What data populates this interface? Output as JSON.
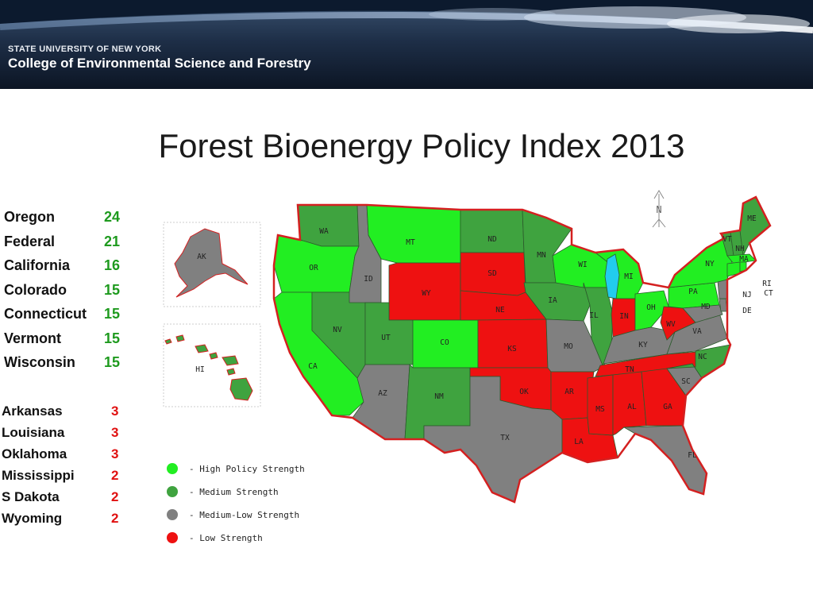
{
  "header": {
    "institution": "STATE UNIVERSITY OF NEW YORK",
    "college": "College of Environmental Science and Forestry"
  },
  "title": "Forest Bioenergy Policy Index 2013",
  "top_states": [
    {
      "name": "Oregon",
      "score": "24"
    },
    {
      "name": "Federal",
      "score": "21"
    },
    {
      "name": "California",
      "score": "16"
    },
    {
      "name": "Colorado",
      "score": "15"
    },
    {
      "name": "Connecticut",
      "score": "15"
    },
    {
      "name": "Vermont",
      "score": "15"
    },
    {
      "name": "Wisconsin",
      "score": "15"
    }
  ],
  "bottom_states": [
    {
      "name": "Arkansas",
      "score": "3"
    },
    {
      "name": "Louisiana",
      "score": "3"
    },
    {
      "name": "Oklahoma",
      "score": "3"
    },
    {
      "name": "Mississippi",
      "score": "2"
    },
    {
      "name": "S Dakota",
      "score": "2"
    },
    {
      "name": "Wyoming",
      "score": "2"
    }
  ],
  "colors": {
    "high": "#22ee22",
    "medium": "#3fa33f",
    "medium_low": "#808080",
    "low": "#ee1111",
    "border": "#d42020"
  },
  "map": {
    "compass_label": "N",
    "state_labels": {
      "WA": "WA",
      "OR": "OR",
      "CA": "CA",
      "ID": "ID",
      "NV": "NV",
      "MT": "MT",
      "WY": "WY",
      "UT": "UT",
      "AZ": "AZ",
      "CO": "CO",
      "NM": "NM",
      "ND": "ND",
      "SD": "SD",
      "NE": "NE",
      "KS": "KS",
      "OK": "OK",
      "TX": "TX",
      "MN": "MN",
      "IA": "IA",
      "MO": "MO",
      "AR": "AR",
      "LA": "LA",
      "WI": "WI",
      "IL": "IL",
      "MI": "MI",
      "IN": "IN",
      "OH": "OH",
      "KY": "KY",
      "TN": "TN",
      "MS": "MS",
      "AL": "AL",
      "GA": "GA",
      "FL": "FL",
      "SC": "SC",
      "NC": "NC",
      "VA": "VA",
      "WV": "WV",
      "PA": "PA",
      "NY": "NY",
      "VT": "VT",
      "NH": "NH",
      "ME": "ME",
      "MA": "MA",
      "RI": "RI",
      "CT": "CT",
      "NJ": "NJ",
      "DE": "DE",
      "MD": "MD",
      "AK": "AK",
      "HI": "HI"
    },
    "legend": [
      {
        "label": "- High Policy Strength",
        "color": "#22ee22"
      },
      {
        "label": "- Medium Strength",
        "color": "#3fa33f"
      },
      {
        "label": "- Medium-Low Strength",
        "color": "#808080"
      },
      {
        "label": "- Low Strength",
        "color": "#ee1111"
      }
    ]
  }
}
